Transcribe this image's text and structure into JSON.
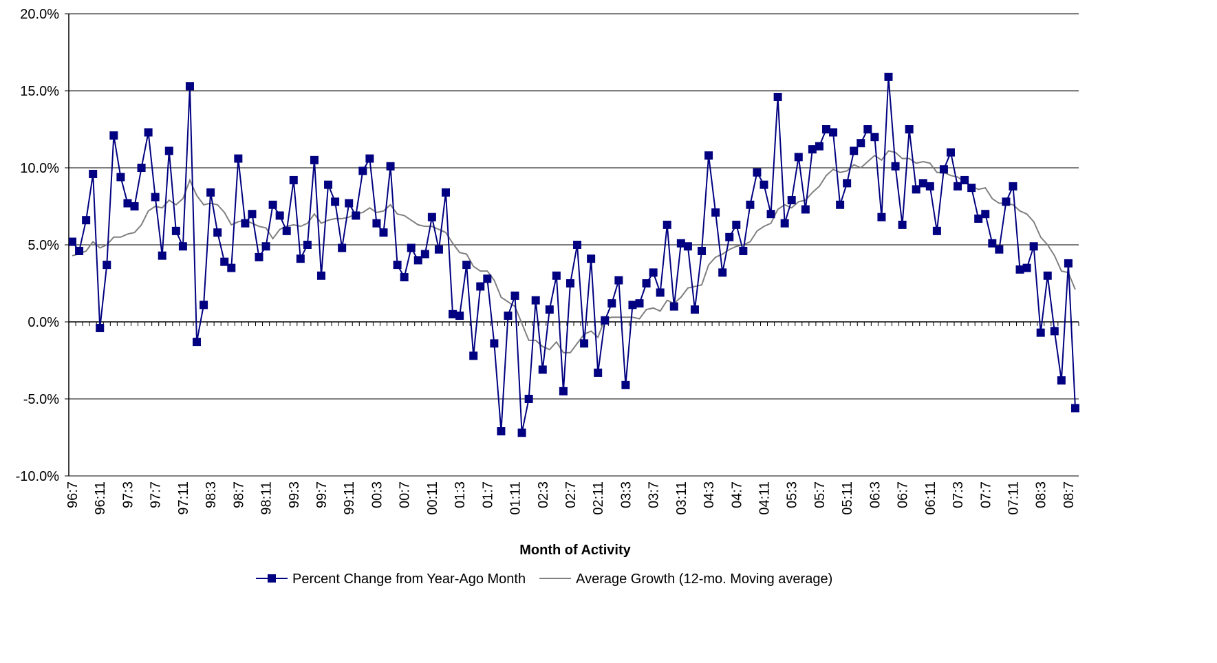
{
  "chart_data": {
    "type": "line",
    "x_label": "Month of Activity",
    "categories": [
      "96:7",
      null,
      null,
      null,
      "96:11",
      null,
      null,
      null,
      "97:3",
      null,
      null,
      null,
      "97:7",
      null,
      null,
      null,
      "97:11",
      null,
      null,
      null,
      "98:3",
      null,
      null,
      null,
      "98:7",
      null,
      null,
      null,
      "98:11",
      null,
      null,
      null,
      "99:3",
      null,
      null,
      null,
      "99:7",
      null,
      null,
      null,
      "99:11",
      null,
      null,
      null,
      "00:3",
      null,
      null,
      null,
      "00:7",
      null,
      null,
      null,
      "00:11",
      null,
      null,
      null,
      "01:3",
      null,
      null,
      null,
      "01:7",
      null,
      null,
      null,
      "01:11",
      null,
      null,
      null,
      "02:3",
      null,
      null,
      null,
      "02:7",
      null,
      null,
      null,
      "02:11",
      null,
      null,
      null,
      "03:3",
      null,
      null,
      null,
      "03:7",
      null,
      null,
      null,
      "03:11",
      null,
      null,
      null,
      "04:3",
      null,
      null,
      null,
      "04:7",
      null,
      null,
      null,
      "04:11",
      null,
      null,
      null,
      "05:3",
      null,
      null,
      null,
      "05:7",
      null,
      null,
      null,
      "05:11",
      null,
      null,
      null,
      "06:3",
      null,
      null,
      null,
      "06:7",
      null,
      null,
      null,
      "06:11",
      null,
      null,
      null,
      "07:3",
      null,
      null,
      null,
      "07:7",
      null,
      null,
      null,
      "07:11",
      null,
      null,
      null,
      "08:3",
      null,
      null,
      null,
      "08:7",
      null
    ],
    "series": [
      {
        "name": "Percent Change from Year-Ago Month",
        "color": "#000080",
        "marker": "square",
        "values": [
          5.2,
          4.6,
          6.6,
          9.6,
          -0.4,
          3.7,
          12.1,
          9.4,
          7.7,
          7.5,
          10.0,
          12.3,
          8.1,
          4.3,
          11.1,
          5.9,
          4.9,
          15.3,
          -1.3,
          1.1,
          8.4,
          5.8,
          3.9,
          3.5,
          10.6,
          6.4,
          7.0,
          4.2,
          4.9,
          7.6,
          6.9,
          5.9,
          9.2,
          4.1,
          5.0,
          10.5,
          3.0,
          8.9,
          7.8,
          4.8,
          7.7,
          6.9,
          9.8,
          10.6,
          6.4,
          5.8,
          10.1,
          3.7,
          2.9,
          4.8,
          4.0,
          4.4,
          6.8,
          4.7,
          8.4,
          0.5,
          0.4,
          3.7,
          -2.2,
          2.3,
          2.8,
          -1.4,
          -7.1,
          0.4,
          1.7,
          -7.2,
          -5.0,
          1.4,
          -3.1,
          0.8,
          3.0,
          -4.5,
          2.5,
          5.0,
          -1.4,
          4.1,
          -3.3,
          0.1,
          1.2,
          2.7,
          -4.1,
          1.1,
          1.2,
          2.5,
          3.2,
          1.9,
          6.3,
          1.0,
          5.1,
          4.9,
          0.8,
          4.6,
          10.8,
          7.1,
          3.2,
          5.5,
          6.3,
          4.6,
          7.6,
          9.7,
          8.9,
          7.0,
          14.6,
          6.4,
          7.9,
          10.7,
          7.3,
          11.2,
          11.4,
          12.5,
          12.3,
          7.6,
          9.0,
          11.1,
          11.6,
          12.5,
          12.0,
          6.8,
          15.9,
          10.1,
          6.3,
          12.5,
          8.6,
          9.0,
          8.8,
          5.9,
          9.9,
          11.0,
          8.8,
          9.2,
          8.7,
          6.7,
          7.0,
          5.1,
          4.7,
          7.8,
          8.8,
          3.4,
          3.5,
          4.9,
          -0.7,
          3.0,
          -0.6,
          -3.8,
          3.8,
          -5.6
        ]
      },
      {
        "name": "Average Growth (12-mo. Moving average)",
        "color": "#808080",
        "values": [
          4.3,
          4.4,
          4.6,
          5.2,
          4.8,
          5.0,
          5.5,
          5.5,
          5.7,
          5.8,
          6.3,
          7.2,
          7.5,
          7.4,
          7.9,
          7.6,
          8.0,
          9.2,
          8.2,
          7.6,
          7.7,
          7.6,
          7.1,
          6.3,
          6.5,
          6.6,
          6.4,
          6.2,
          6.1,
          5.4,
          6.0,
          6.2,
          6.3,
          6.2,
          6.4,
          7.0,
          6.4,
          6.6,
          6.7,
          6.7,
          6.8,
          7.0,
          7.1,
          7.4,
          7.1,
          7.2,
          7.6,
          7.0,
          6.9,
          6.6,
          6.3,
          6.2,
          6.2,
          6.0,
          5.8,
          5.1,
          4.5,
          4.4,
          3.6,
          3.3,
          3.3,
          2.7,
          1.6,
          1.3,
          1.0,
          -0.1,
          -1.2,
          -1.2,
          -1.6,
          -1.8,
          -1.3,
          -2.0,
          -2.0,
          -1.4,
          -0.8,
          -0.6,
          -1.0,
          0.2,
          0.3,
          0.3,
          0.3,
          0.3,
          0.2,
          0.8,
          0.9,
          0.7,
          1.4,
          1.2,
          1.6,
          2.2,
          2.3,
          2.4,
          3.7,
          4.2,
          4.4,
          4.7,
          4.9,
          5.0,
          5.2,
          5.9,
          6.2,
          6.4,
          7.3,
          7.6,
          7.4,
          7.8,
          7.9,
          8.4,
          8.8,
          9.5,
          9.9,
          9.7,
          9.8,
          10.2,
          10.0,
          10.4,
          10.8,
          10.5,
          11.1,
          11.0,
          10.6,
          10.6,
          10.3,
          10.4,
          10.3,
          9.7,
          9.7,
          9.5,
          9.4,
          9.1,
          8.8,
          8.6,
          8.7,
          8.0,
          7.7,
          7.7,
          7.6,
          7.2,
          7.0,
          6.5,
          5.5,
          5.0,
          4.3,
          3.3,
          3.2,
          2.1
        ]
      }
    ],
    "ylim": [
      -10,
      20
    ],
    "yticks": [
      {
        "value": -10,
        "label": "-10.0%"
      },
      {
        "value": -5,
        "label": "-5.0%"
      },
      {
        "value": 0,
        "label": "0.0%"
      },
      {
        "value": 5,
        "label": "5.0%"
      },
      {
        "value": 10,
        "label": "10.0%"
      },
      {
        "value": 15,
        "label": "15.0%"
      },
      {
        "value": 20,
        "label": "20.0%"
      }
    ],
    "grid": true,
    "legend": "bottom"
  }
}
